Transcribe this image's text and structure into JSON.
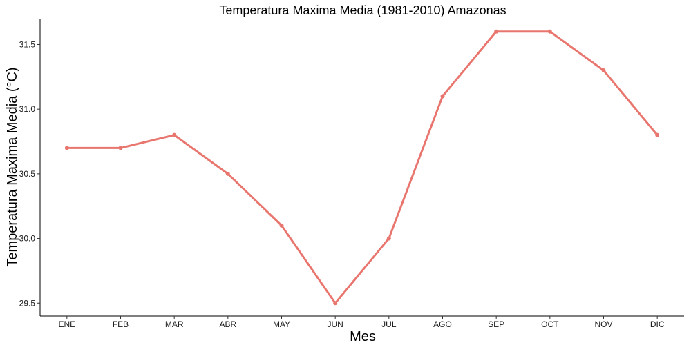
{
  "chart_data": {
    "type": "line",
    "title": "Temperatura Maxima Media (1981-2010)  Amazonas",
    "xlabel": "Mes",
    "ylabel": "Temperatura Maxima Media  (°C)",
    "categories": [
      "ENE",
      "FEB",
      "MAR",
      "ABR",
      "MAY",
      "JUN",
      "JUL",
      "AGO",
      "SEP",
      "OCT",
      "NOV",
      "DIC"
    ],
    "series": [
      {
        "values": [
          30.7,
          30.7,
          30.8,
          30.5,
          30.1,
          29.5,
          30.0,
          31.1,
          31.6,
          31.6,
          31.3,
          30.8
        ],
        "color": "#E8766E"
      }
    ],
    "ylim": [
      29.4,
      31.7
    ],
    "yticks": [
      29.5,
      30.0,
      30.5,
      31.0,
      31.5
    ],
    "ytick_labels": [
      "29.5",
      "30.0",
      "30.5",
      "31.0",
      "31.5"
    ],
    "grid": false,
    "legend": "none"
  }
}
